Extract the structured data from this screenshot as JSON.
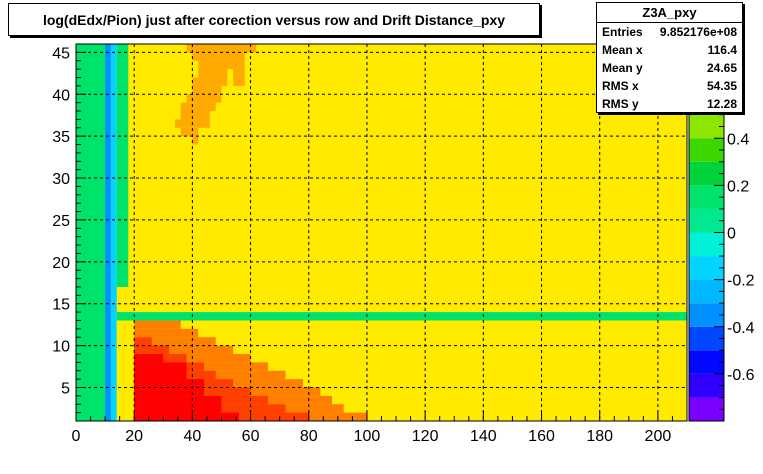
{
  "title": "log(dEdx/Pion) just after corection versus row and Drift Distance_pxy",
  "stats": {
    "name": "Z3A_pxy",
    "rows": [
      {
        "label": "Entries",
        "value": "9.852176e+08"
      },
      {
        "label": "Mean x",
        "value": "116.4"
      },
      {
        "label": "Mean y",
        "value": "24.65"
      },
      {
        "label": "RMS x",
        "value": "54.35"
      },
      {
        "label": "RMS y",
        "value": "12.28"
      }
    ]
  },
  "chart_data": {
    "type": "heatmap",
    "title": "log(dEdx/Pion) just after corection versus row and Drift Distance_pxy",
    "xlabel": "",
    "ylabel": "",
    "xlim": [
      0,
      210
    ],
    "ylim": [
      1,
      46
    ],
    "x_ticks": [
      0,
      20,
      40,
      60,
      80,
      100,
      120,
      140,
      160,
      180,
      200
    ],
    "y_ticks": [
      5,
      10,
      15,
      20,
      25,
      30,
      35,
      40,
      45
    ],
    "grid": true,
    "background_value": 0.6,
    "z_range": [
      -0.8,
      0.8
    ],
    "z_ticks": [
      -0.6,
      -0.4,
      -0.2,
      0,
      0.2,
      0.4
    ],
    "colors": {
      "yellow": "#ffea00",
      "orange_light": "#ffaa00",
      "orange": "#ff7f00",
      "red_orange": "#ff3f00",
      "red": "#ff0000",
      "green": "#00e36a",
      "cyan": "#00d4ff",
      "blue": "#0090ff"
    },
    "regions": [
      {
        "x": [
          0,
          10
        ],
        "y": [
          1,
          46
        ],
        "value": -0.2,
        "color": "green"
      },
      {
        "x": [
          10,
          12
        ],
        "y": [
          1,
          46
        ],
        "value": -0.5,
        "color": "blue"
      },
      {
        "x": [
          12,
          14
        ],
        "y": [
          1,
          46
        ],
        "value": -0.3,
        "color": "cyan"
      },
      {
        "x": [
          14,
          18
        ],
        "y": [
          17,
          46
        ],
        "value": -0.1,
        "color": "green"
      },
      {
        "x": [
          18,
          20
        ],
        "y": [
          17,
          46
        ],
        "value": 0.45,
        "color": "yellow"
      },
      {
        "x": [
          14,
          210
        ],
        "y": [
          13,
          14
        ],
        "value": -0.1,
        "color": "green"
      },
      {
        "x": [
          14,
          20
        ],
        "y": [
          1,
          13
        ],
        "value": 0.6,
        "color": "yellow"
      },
      {
        "x": [
          20,
          100
        ],
        "y": [
          1,
          2
        ],
        "value": 0.75,
        "color": "orange"
      },
      {
        "x": [
          20,
          92
        ],
        "y": [
          2,
          3
        ],
        "value": 0.75,
        "color": "orange"
      },
      {
        "x": [
          20,
          88
        ],
        "y": [
          3,
          4
        ],
        "value": 0.75,
        "color": "orange"
      },
      {
        "x": [
          20,
          84
        ],
        "y": [
          4,
          5
        ],
        "value": 0.75,
        "color": "orange"
      },
      {
        "x": [
          20,
          78
        ],
        "y": [
          5,
          6
        ],
        "value": 0.75,
        "color": "orange"
      },
      {
        "x": [
          20,
          72
        ],
        "y": [
          6,
          7
        ],
        "value": 0.75,
        "color": "orange"
      },
      {
        "x": [
          20,
          66
        ],
        "y": [
          7,
          8
        ],
        "value": 0.75,
        "color": "orange"
      },
      {
        "x": [
          20,
          60
        ],
        "y": [
          8,
          9
        ],
        "value": 0.75,
        "color": "orange"
      },
      {
        "x": [
          20,
          54
        ],
        "y": [
          9,
          10
        ],
        "value": 0.75,
        "color": "orange"
      },
      {
        "x": [
          20,
          48
        ],
        "y": [
          10,
          11
        ],
        "value": 0.75,
        "color": "orange"
      },
      {
        "x": [
          20,
          42
        ],
        "y": [
          11,
          12
        ],
        "value": 0.75,
        "color": "orange"
      },
      {
        "x": [
          20,
          36
        ],
        "y": [
          12,
          13
        ],
        "value": 0.75,
        "color": "orange"
      },
      {
        "x": [
          20,
          80
        ],
        "y": [
          1,
          2
        ],
        "value": 0.78,
        "color": "red_orange"
      },
      {
        "x": [
          20,
          72
        ],
        "y": [
          2,
          3
        ],
        "value": 0.78,
        "color": "red_orange"
      },
      {
        "x": [
          20,
          66
        ],
        "y": [
          3,
          4
        ],
        "value": 0.78,
        "color": "red_orange"
      },
      {
        "x": [
          20,
          60
        ],
        "y": [
          4,
          5
        ],
        "value": 0.78,
        "color": "red_orange"
      },
      {
        "x": [
          20,
          54
        ],
        "y": [
          5,
          6
        ],
        "value": 0.78,
        "color": "red_orange"
      },
      {
        "x": [
          20,
          48
        ],
        "y": [
          6,
          7
        ],
        "value": 0.78,
        "color": "red_orange"
      },
      {
        "x": [
          20,
          44
        ],
        "y": [
          7,
          8
        ],
        "value": 0.78,
        "color": "red_orange"
      },
      {
        "x": [
          20,
          38
        ],
        "y": [
          8,
          9
        ],
        "value": 0.78,
        "color": "red_orange"
      },
      {
        "x": [
          20,
          32
        ],
        "y": [
          9,
          10
        ],
        "value": 0.78,
        "color": "red_orange"
      },
      {
        "x": [
          20,
          26
        ],
        "y": [
          10,
          11
        ],
        "value": 0.78,
        "color": "red_orange"
      },
      {
        "x": [
          20,
          56
        ],
        "y": [
          1,
          2
        ],
        "value": 0.8,
        "color": "red"
      },
      {
        "x": [
          20,
          50
        ],
        "y": [
          2,
          4
        ],
        "value": 0.8,
        "color": "red"
      },
      {
        "x": [
          20,
          44
        ],
        "y": [
          4,
          6
        ],
        "value": 0.8,
        "color": "red"
      },
      {
        "x": [
          20,
          38
        ],
        "y": [
          6,
          8
        ],
        "value": 0.8,
        "color": "red"
      },
      {
        "x": [
          20,
          30
        ],
        "y": [
          8,
          9
        ],
        "value": 0.8,
        "color": "red"
      },
      {
        "x": [
          38,
          62
        ],
        "y": [
          45,
          46
        ],
        "value": 0.7,
        "color": "orange_light"
      },
      {
        "x": [
          40,
          58
        ],
        "y": [
          44,
          45
        ],
        "value": 0.7,
        "color": "orange_light"
      },
      {
        "x": [
          42,
          54
        ],
        "y": [
          43,
          44
        ],
        "value": 0.7,
        "color": "orange_light"
      },
      {
        "x": [
          42,
          52
        ],
        "y": [
          42,
          43
        ],
        "value": 0.7,
        "color": "orange_light"
      },
      {
        "x": [
          40,
          52
        ],
        "y": [
          41,
          42
        ],
        "value": 0.7,
        "color": "orange_light"
      },
      {
        "x": [
          40,
          50
        ],
        "y": [
          40,
          41
        ],
        "value": 0.7,
        "color": "orange_light"
      },
      {
        "x": [
          38,
          50
        ],
        "y": [
          39,
          40
        ],
        "value": 0.7,
        "color": "orange_light"
      },
      {
        "x": [
          36,
          48
        ],
        "y": [
          38,
          39
        ],
        "value": 0.7,
        "color": "orange_light"
      },
      {
        "x": [
          36,
          46
        ],
        "y": [
          37,
          38
        ],
        "value": 0.7,
        "color": "orange_light"
      },
      {
        "x": [
          34,
          46
        ],
        "y": [
          36,
          37
        ],
        "value": 0.7,
        "color": "orange_light"
      },
      {
        "x": [
          36,
          42
        ],
        "y": [
          35,
          36
        ],
        "value": 0.7,
        "color": "orange_light"
      },
      {
        "x": [
          40,
          42
        ],
        "y": [
          34,
          35
        ],
        "value": 0.7,
        "color": "orange_light"
      },
      {
        "x": [
          54,
          58
        ],
        "y": [
          41,
          44
        ],
        "value": 0.7,
        "color": "orange_light"
      },
      {
        "x": [
          196,
          204
        ],
        "y": [
          1,
          2
        ],
        "value": 0.3,
        "color": "yellow"
      }
    ],
    "palette": {
      "colors": [
        "#7a00ff",
        "#3000ff",
        "#0008ff",
        "#0048ff",
        "#0090ff",
        "#00b8ff",
        "#00d4ff",
        "#00f0d8",
        "#00e890",
        "#00e36a",
        "#00d23c",
        "#3cd700",
        "#8ce600",
        "#c8f000",
        "#f0f500",
        "#ffea00"
      ]
    }
  }
}
